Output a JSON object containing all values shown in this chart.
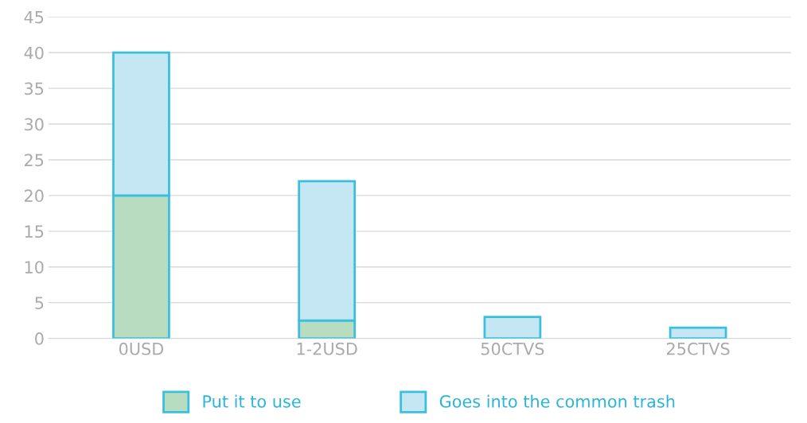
{
  "chart_data": {
    "type": "bar",
    "stacked": true,
    "categories": [
      "0USD",
      "1-2USD",
      "50CTVS",
      "25CTVS"
    ],
    "series": [
      {
        "name": "Put it to use",
        "color": "#b8dcc0",
        "values": [
          20,
          2.5,
          0,
          0
        ]
      },
      {
        "name": "Goes into the common trash",
        "color": "#c5e6f3",
        "values": [
          20,
          19.5,
          3,
          1.5
        ]
      }
    ],
    "ylim": [
      0,
      45
    ],
    "yticks": [
      0,
      5,
      10,
      15,
      20,
      25,
      30,
      35,
      40,
      45
    ],
    "grid": "y",
    "legend": "bottom"
  }
}
